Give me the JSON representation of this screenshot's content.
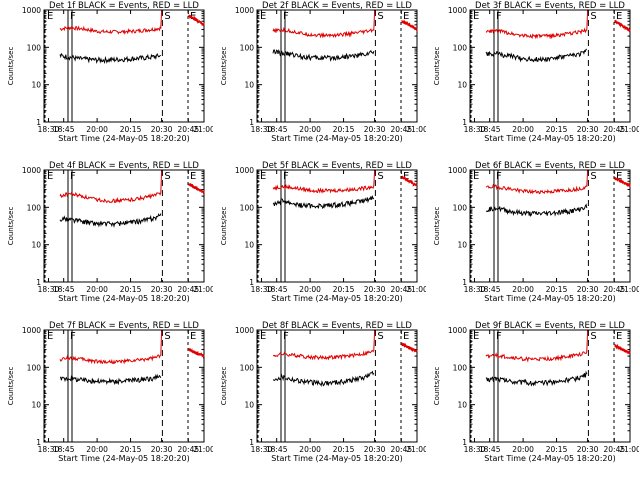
{
  "colors": {
    "events": "#000000",
    "lld": "#e00000",
    "axes": "#000000",
    "background": "#ffffff"
  },
  "chart_data": [
    {
      "type": "line",
      "title": "Det 1f BLACK = Events, RED = LLD",
      "xlabel": "Start Time (24-May-05 18:20:20)",
      "ylabel": "Counts/sec",
      "x_tick_labels": [
        "18:30",
        "18:45",
        "20:00",
        "20:15",
        "20:30",
        "20:45",
        "21:00"
      ],
      "y_tick_labels": [
        "1",
        "10",
        "100",
        "1000"
      ],
      "yscale": "log",
      "ylim": [
        1,
        1000
      ],
      "markers": [
        {
          "label": "E",
          "t": 0
        },
        {
          "label": "F",
          "t": 0.15
        },
        {
          "label": "S",
          "t": 0.74
        },
        {
          "label": "E",
          "t": 0.9
        }
      ],
      "series": [
        {
          "values": [
            310,
            340,
            320,
            300,
            270,
            260,
            260,
            265,
            270,
            285,
            300,
            330
          ]
        },
        {
          "values": [
            60,
            55,
            50,
            48,
            46,
            46,
            47,
            48,
            50,
            52,
            55,
            60
          ]
        }
      ],
      "series_after": [
        {
          "values": [
            700,
            550,
            400
          ]
        }
      ]
    },
    {
      "type": "line",
      "title": "Det 2f BLACK = Events, RED = LLD",
      "xlabel": "Start Time (24-May-05 18:20:20)",
      "ylabel": "Counts/sec",
      "x_tick_labels": [
        "18:30",
        "18:45",
        "20:00",
        "20:15",
        "20:30",
        "20:45",
        "21:00"
      ],
      "y_tick_labels": [
        "1",
        "10",
        "100",
        "1000"
      ],
      "yscale": "log",
      "ylim": [
        1,
        1000
      ],
      "markers": [
        {
          "label": "E",
          "t": 0
        },
        {
          "label": "F",
          "t": 0.15
        },
        {
          "label": "S",
          "t": 0.74
        },
        {
          "label": "E",
          "t": 0.9
        }
      ],
      "series": [
        {
          "values": [
            270,
            290,
            270,
            240,
            220,
            210,
            210,
            215,
            225,
            240,
            260,
            290
          ]
        },
        {
          "values": [
            75,
            70,
            65,
            58,
            54,
            52,
            52,
            54,
            57,
            60,
            65,
            75
          ]
        }
      ],
      "series_after": [
        {
          "values": [
            500,
            400,
            300
          ]
        }
      ]
    },
    {
      "type": "line",
      "title": "Det 3f BLACK = Events, RED = LLD",
      "xlabel": "Start Time (24-May-05 18:20:20)",
      "ylabel": "Counts/sec",
      "x_tick_labels": [
        "18:30",
        "18:45",
        "20:00",
        "20:15",
        "20:30",
        "20:45",
        "21:00"
      ],
      "y_tick_labels": [
        "1",
        "10",
        "100",
        "1000"
      ],
      "yscale": "log",
      "ylim": [
        1,
        1000
      ],
      "markers": [
        {
          "label": "E",
          "t": 0
        },
        {
          "label": "F",
          "t": 0.15
        },
        {
          "label": "S",
          "t": 0.74
        },
        {
          "label": "E",
          "t": 0.9
        }
      ],
      "series": [
        {
          "values": [
            260,
            280,
            260,
            230,
            210,
            200,
            200,
            205,
            215,
            230,
            255,
            290
          ]
        },
        {
          "values": [
            70,
            68,
            62,
            56,
            50,
            48,
            48,
            50,
            54,
            58,
            64,
            80
          ]
        }
      ],
      "series_after": [
        {
          "values": [
            500,
            380,
            280
          ]
        }
      ]
    },
    {
      "type": "line",
      "title": "Det 4f BLACK = Events, RED = LLD",
      "xlabel": "Start Time (24-May-05 18:20:20)",
      "ylabel": "Counts/sec",
      "x_tick_labels": [
        "18:30",
        "18:45",
        "20:00",
        "20:15",
        "20:30",
        "20:45",
        "21:00"
      ],
      "y_tick_labels": [
        "1",
        "10",
        "100",
        "1000"
      ],
      "yscale": "log",
      "ylim": [
        1,
        1000
      ],
      "markers": [
        {
          "label": "E",
          "t": 0
        },
        {
          "label": "F",
          "t": 0.15
        },
        {
          "label": "S",
          "t": 0.74
        },
        {
          "label": "E",
          "t": 0.9
        }
      ],
      "series": [
        {
          "values": [
            200,
            230,
            210,
            180,
            160,
            150,
            150,
            155,
            165,
            180,
            200,
            240
          ]
        },
        {
          "values": [
            50,
            48,
            44,
            40,
            37,
            36,
            36,
            38,
            40,
            44,
            50,
            60
          ]
        }
      ],
      "series_after": [
        {
          "values": [
            420,
            320,
            250
          ]
        }
      ]
    },
    {
      "type": "line",
      "title": "Det 5f BLACK = Events, RED = LLD",
      "xlabel": "Start Time (24-May-05 18:20:20)",
      "ylabel": "Counts/sec",
      "x_tick_labels": [
        "18:30",
        "18:45",
        "20:00",
        "20:15",
        "20:30",
        "20:45",
        "21:00"
      ],
      "y_tick_labels": [
        "1",
        "10",
        "100",
        "1000"
      ],
      "yscale": "log",
      "ylim": [
        1,
        1000
      ],
      "markers": [
        {
          "label": "E",
          "t": 0
        },
        {
          "label": "F",
          "t": 0.15
        },
        {
          "label": "S",
          "t": 0.74
        },
        {
          "label": "E",
          "t": 0.9
        }
      ],
      "series": [
        {
          "values": [
            330,
            360,
            340,
            310,
            290,
            280,
            280,
            285,
            295,
            310,
            330,
            370
          ]
        },
        {
          "values": [
            120,
            150,
            130,
            115,
            110,
            110,
            112,
            118,
            125,
            135,
            150,
            190
          ]
        }
      ],
      "series_after": [
        {
          "values": [
            650,
            500,
            380
          ]
        }
      ]
    },
    {
      "type": "line",
      "title": "Det 6f BLACK = Events, RED = LLD",
      "xlabel": "Start Time (24-May-05 18:20:20)",
      "ylabel": "Counts/sec",
      "x_tick_labels": [
        "18:30",
        "18:45",
        "20:00",
        "20:15",
        "20:30",
        "20:45",
        "21:00"
      ],
      "y_tick_labels": [
        "1",
        "10",
        "100",
        "1000"
      ],
      "yscale": "log",
      "ylim": [
        1,
        1000
      ],
      "markers": [
        {
          "label": "E",
          "t": 0
        },
        {
          "label": "F",
          "t": 0.15
        },
        {
          "label": "S",
          "t": 0.74
        },
        {
          "label": "E",
          "t": 0.9
        }
      ],
      "series": [
        {
          "values": [
            340,
            360,
            330,
            300,
            275,
            260,
            260,
            265,
            275,
            290,
            310,
            350
          ]
        },
        {
          "values": [
            85,
            100,
            85,
            75,
            70,
            68,
            68,
            70,
            74,
            78,
            85,
            105
          ]
        }
      ],
      "series_after": [
        {
          "values": [
            600,
            480,
            380
          ]
        }
      ]
    },
    {
      "type": "line",
      "title": "Det 7f BLACK = Events, RED = LLD",
      "xlabel": "Start Time (24-May-05 18:20:20)",
      "ylabel": "Counts/sec",
      "x_tick_labels": [
        "18:30",
        "18:45",
        "20:00",
        "20:15",
        "20:30",
        "20:45",
        "21:00"
      ],
      "y_tick_labels": [
        "1",
        "10",
        "100",
        "1000"
      ],
      "yscale": "log",
      "ylim": [
        1,
        1000
      ],
      "markers": [
        {
          "label": "E",
          "t": 0
        },
        {
          "label": "F",
          "t": 0.15
        },
        {
          "label": "S",
          "t": 0.74
        },
        {
          "label": "E",
          "t": 0.9
        }
      ],
      "series": [
        {
          "values": [
            160,
            180,
            170,
            155,
            145,
            140,
            140,
            145,
            150,
            160,
            175,
            200
          ]
        },
        {
          "values": [
            50,
            52,
            48,
            45,
            43,
            42,
            42,
            43,
            45,
            47,
            50,
            55
          ]
        }
      ],
      "series_after": [
        {
          "values": [
            300,
            240,
            200
          ]
        }
      ]
    },
    {
      "type": "line",
      "title": "Det 8f BLACK = Events, RED = LLD",
      "xlabel": "Start Time (24-May-05 18:20:20)",
      "ylabel": "Counts/sec",
      "x_tick_labels": [
        "18:30",
        "18:45",
        "20:00",
        "20:15",
        "20:30",
        "20:45",
        "21:00"
      ],
      "y_tick_labels": [
        "1",
        "10",
        "100",
        "1000"
      ],
      "yscale": "log",
      "ylim": [
        1,
        1000
      ],
      "markers": [
        {
          "label": "E",
          "t": 0
        },
        {
          "label": "F",
          "t": 0.15
        },
        {
          "label": "S",
          "t": 0.74
        },
        {
          "label": "E",
          "t": 0.9
        }
      ],
      "series": [
        {
          "values": [
            200,
            230,
            215,
            200,
            190,
            185,
            185,
            190,
            200,
            215,
            235,
            270
          ]
        },
        {
          "values": [
            48,
            55,
            48,
            43,
            40,
            38,
            38,
            40,
            43,
            48,
            55,
            70
          ]
        }
      ],
      "series_after": [
        {
          "values": [
            420,
            330,
            270
          ]
        }
      ]
    },
    {
      "type": "line",
      "title": "Det 9f BLACK = Events, RED = LLD",
      "xlabel": "Start Time (24-May-05 18:20:20)",
      "ylabel": "Counts/sec",
      "x_tick_labels": [
        "18:30",
        "18:45",
        "20:00",
        "20:15",
        "20:30",
        "20:45",
        "21:00"
      ],
      "y_tick_labels": [
        "1",
        "10",
        "100",
        "1000"
      ],
      "yscale": "log",
      "ylim": [
        1,
        1000
      ],
      "markers": [
        {
          "label": "E",
          "t": 0
        },
        {
          "label": "F",
          "t": 0.15
        },
        {
          "label": "S",
          "t": 0.74
        },
        {
          "label": "E",
          "t": 0.9
        }
      ],
      "series": [
        {
          "values": [
            190,
            210,
            195,
            180,
            170,
            165,
            165,
            170,
            180,
            195,
            215,
            250
          ]
        },
        {
          "values": [
            46,
            52,
            46,
            42,
            40,
            38,
            38,
            40,
            42,
            46,
            52,
            65
          ]
        }
      ],
      "series_after": [
        {
          "values": [
            380,
            300,
            240
          ]
        }
      ]
    }
  ]
}
